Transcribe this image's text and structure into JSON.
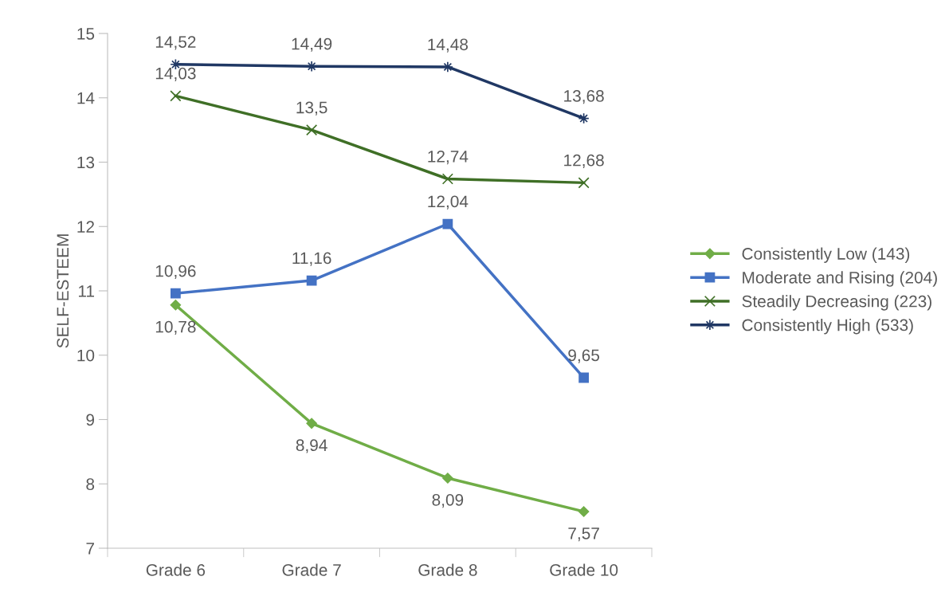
{
  "chart_data": {
    "type": "line",
    "ylabel": "SELF-ESTEEM",
    "categories": [
      "Grade 6",
      "Grade 7",
      "Grade 8",
      "Grade 10"
    ],
    "series": [
      {
        "name": "Consistently Low (143)",
        "color": "#70ad47",
        "marker": "diamond",
        "values": [
          10.78,
          8.94,
          8.09,
          7.57
        ],
        "value_labels": [
          "10,78",
          "8,94",
          "8,09",
          "7,57"
        ]
      },
      {
        "name": "Moderate and Rising (204)",
        "color": "#4472c4",
        "marker": "square",
        "values": [
          10.96,
          11.16,
          12.04,
          9.65
        ],
        "value_labels": [
          "10,96",
          "11,16",
          "12,04",
          "9,65"
        ]
      },
      {
        "name": "Steadily Decreasing (223)",
        "color": "#3f6f26",
        "marker": "cross",
        "values": [
          14.03,
          13.5,
          12.74,
          12.68
        ],
        "value_labels": [
          "14,03",
          "13,5",
          "12,74",
          "12,68"
        ]
      },
      {
        "name": "Consistently High (533)",
        "color": "#203864",
        "marker": "star",
        "values": [
          14.52,
          14.49,
          14.48,
          13.68
        ],
        "value_labels": [
          "14,52",
          "14,49",
          "14,48",
          "13,68"
        ]
      }
    ],
    "ylim": [
      7,
      15
    ],
    "yticks": [
      7,
      8,
      9,
      10,
      11,
      12,
      13,
      14,
      15
    ],
    "grid": false,
    "legend": "right"
  }
}
